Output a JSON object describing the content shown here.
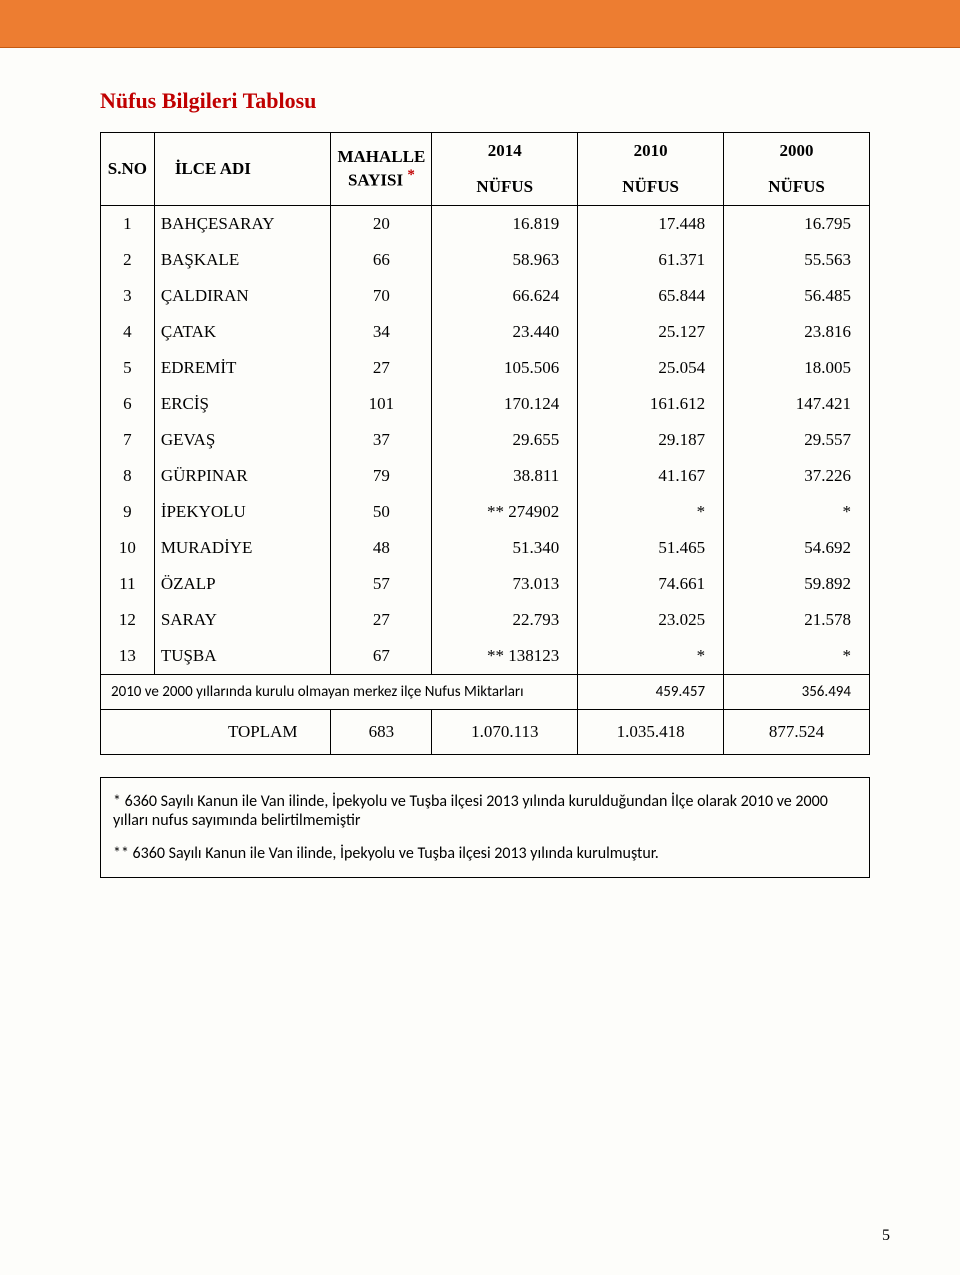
{
  "title": "Nüfus Bilgileri Tablosu",
  "header": {
    "sno": "S.NO",
    "ilce": "İLCE ADI",
    "mahalle_line1": "MAHALLE",
    "mahalle_line2": "SAYISI",
    "y2014": "2014",
    "y2010": "2010",
    "y2000": "2000",
    "nufus": "NÜFUS"
  },
  "rows": [
    {
      "sno": "1",
      "ilce": "BAHÇESARAY",
      "mahalle": "20",
      "n2014": "16.819",
      "n2010": "17.448",
      "n2000": "16.795"
    },
    {
      "sno": "2",
      "ilce": "BAŞKALE",
      "mahalle": "66",
      "n2014": "58.963",
      "n2010": "61.371",
      "n2000": "55.563"
    },
    {
      "sno": "3",
      "ilce": "ÇALDIRAN",
      "mahalle": "70",
      "n2014": "66.624",
      "n2010": "65.844",
      "n2000": "56.485"
    },
    {
      "sno": "4",
      "ilce": "ÇATAK",
      "mahalle": "34",
      "n2014": "23.440",
      "n2010": "25.127",
      "n2000": "23.816"
    },
    {
      "sno": "5",
      "ilce": "EDREMİT",
      "mahalle": "27",
      "n2014": "105.506",
      "n2010": "25.054",
      "n2000": "18.005"
    },
    {
      "sno": "6",
      "ilce": "ERCİŞ",
      "mahalle": "101",
      "n2014": "170.124",
      "n2010": "161.612",
      "n2000": "147.421"
    },
    {
      "sno": "7",
      "ilce": "GEVAŞ",
      "mahalle": "37",
      "n2014": "29.655",
      "n2010": "29.187",
      "n2000": "29.557"
    },
    {
      "sno": "8",
      "ilce": "GÜRPINAR",
      "mahalle": "79",
      "n2014": "38.811",
      "n2010": "41.167",
      "n2000": "37.226"
    },
    {
      "sno": "9",
      "ilce": "İPEKYOLU",
      "mahalle": "50",
      "n2014": "**  274902",
      "n2010": "*",
      "n2000": "*"
    },
    {
      "sno": "10",
      "ilce": "MURADİYE",
      "mahalle": "48",
      "n2014": "51.340",
      "n2010": "51.465",
      "n2000": "54.692"
    },
    {
      "sno": "11",
      "ilce": "ÖZALP",
      "mahalle": "57",
      "n2014": "73.013",
      "n2010": "74.661",
      "n2000": "59.892"
    },
    {
      "sno": "12",
      "ilce": "SARAY",
      "mahalle": "27",
      "n2014": "22.793",
      "n2010": "23.025",
      "n2000": "21.578"
    },
    {
      "sno": "13",
      "ilce": "TUŞBA",
      "mahalle": "67",
      "n2014": "**  138123",
      "n2010": "*",
      "n2000": "*"
    }
  ],
  "note_row": {
    "text": "2010 ve 2000 yıllarında kurulu olmayan merkez ilçe Nufus Miktarları",
    "n2010": "459.457",
    "n2000": "356.494"
  },
  "toplam": {
    "label": "TOPLAM",
    "mahalle": "683",
    "n2014": "1.070.113",
    "n2010": "1.035.418",
    "n2000": "877.524"
  },
  "footnote1": "* 6360 Sayılı Kanun ile  Van ilinde, İpekyolu ve Tuşba ilçesi 2013 yılında kurulduğundan  İlçe olarak  2010 ve 2000 yılları nufus sayımında belirtilmemiştir",
  "footnote2": "** 6360 Sayılı Kanun ile  Van ilinde, İpekyolu ve Tuşba ilçesi 2013 yılında kurulmuştur.",
  "page_number": "5",
  "colors": {
    "header_bar": "#ed7d31",
    "title": "#c00000",
    "asterisk": "#c00000"
  }
}
